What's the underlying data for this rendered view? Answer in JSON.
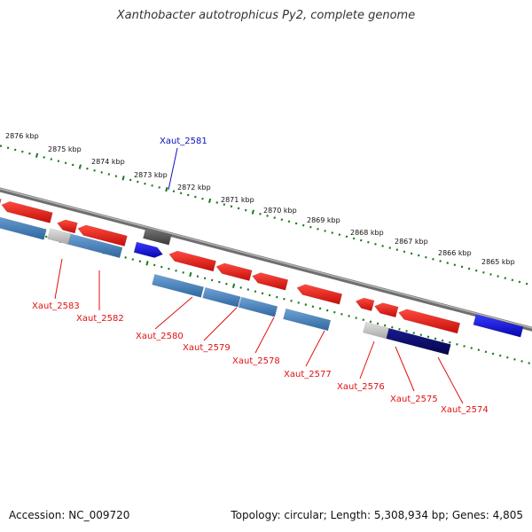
{
  "title": "Xanthobacter autotrophicus Py2, complete genome",
  "footer": {
    "accession": "Accession: NC_009720",
    "topology": "Topology: circular; Length: 5,308,934 bp; Genes: 4,805"
  },
  "colors": {
    "forward_gene": "#e8221a",
    "reverse_gene": "#4a82b8",
    "highlight_gene": "#1010e0",
    "dark_gene": "#555555",
    "light_gene": "#c8c8c8",
    "navy_gene": "#0c0c70",
    "backbone": "#888888",
    "tick": "#1a7a1a",
    "label_red": "#e01010",
    "label_blue": "#1010c0"
  },
  "kbp_labels": [
    "2876 kbp",
    "2875 kbp",
    "2874 kbp",
    "2873 kbp",
    "2872 kbp",
    "2871 kbp",
    "2870 kbp",
    "2869 kbp",
    "2868 kbp",
    "2867 kbp",
    "2866 kbp",
    "2865 kbp"
  ],
  "gene_labels": [
    "Xaut_2581",
    "Xaut_2583",
    "Xaut_2582",
    "Xaut_2580",
    "Xaut_2579",
    "Xaut_2578",
    "Xaut_2577",
    "Xaut_2576",
    "Xaut_2575",
    "Xaut_2574"
  ]
}
